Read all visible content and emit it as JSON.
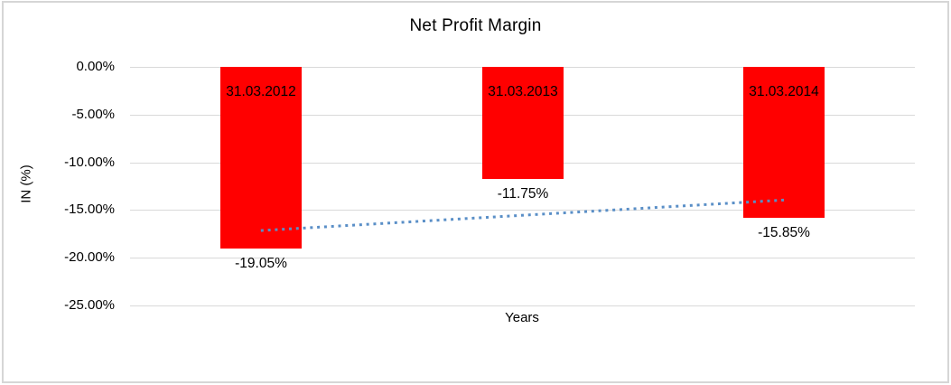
{
  "chart_data": {
    "type": "bar",
    "title": "Net Profit Margin",
    "xlabel": "Years",
    "ylabel": "IN (%)",
    "categories": [
      "31.03.2012",
      "31.03.2013",
      "31.03.2014"
    ],
    "values": [
      -19.05,
      -11.75,
      -15.85
    ],
    "data_labels": [
      "-19.05%",
      "-11.75%",
      "-15.85%"
    ],
    "ylim": [
      -25,
      0
    ],
    "y_ticks": [
      0,
      -5,
      -10,
      -15,
      -20,
      -25
    ],
    "y_tick_labels": [
      "0.00%",
      "-5.00%",
      "-10.00%",
      "-15.00%",
      "-20.00%",
      "-25.00%"
    ],
    "grid": true,
    "legend": "none",
    "bar_color": "#ff0000",
    "gridline_color": "#d9d9d9",
    "trendline": {
      "type": "linear",
      "style": "dotted",
      "color": "#5a8fc7",
      "start_value": -17.15,
      "end_value": -13.95
    }
  }
}
